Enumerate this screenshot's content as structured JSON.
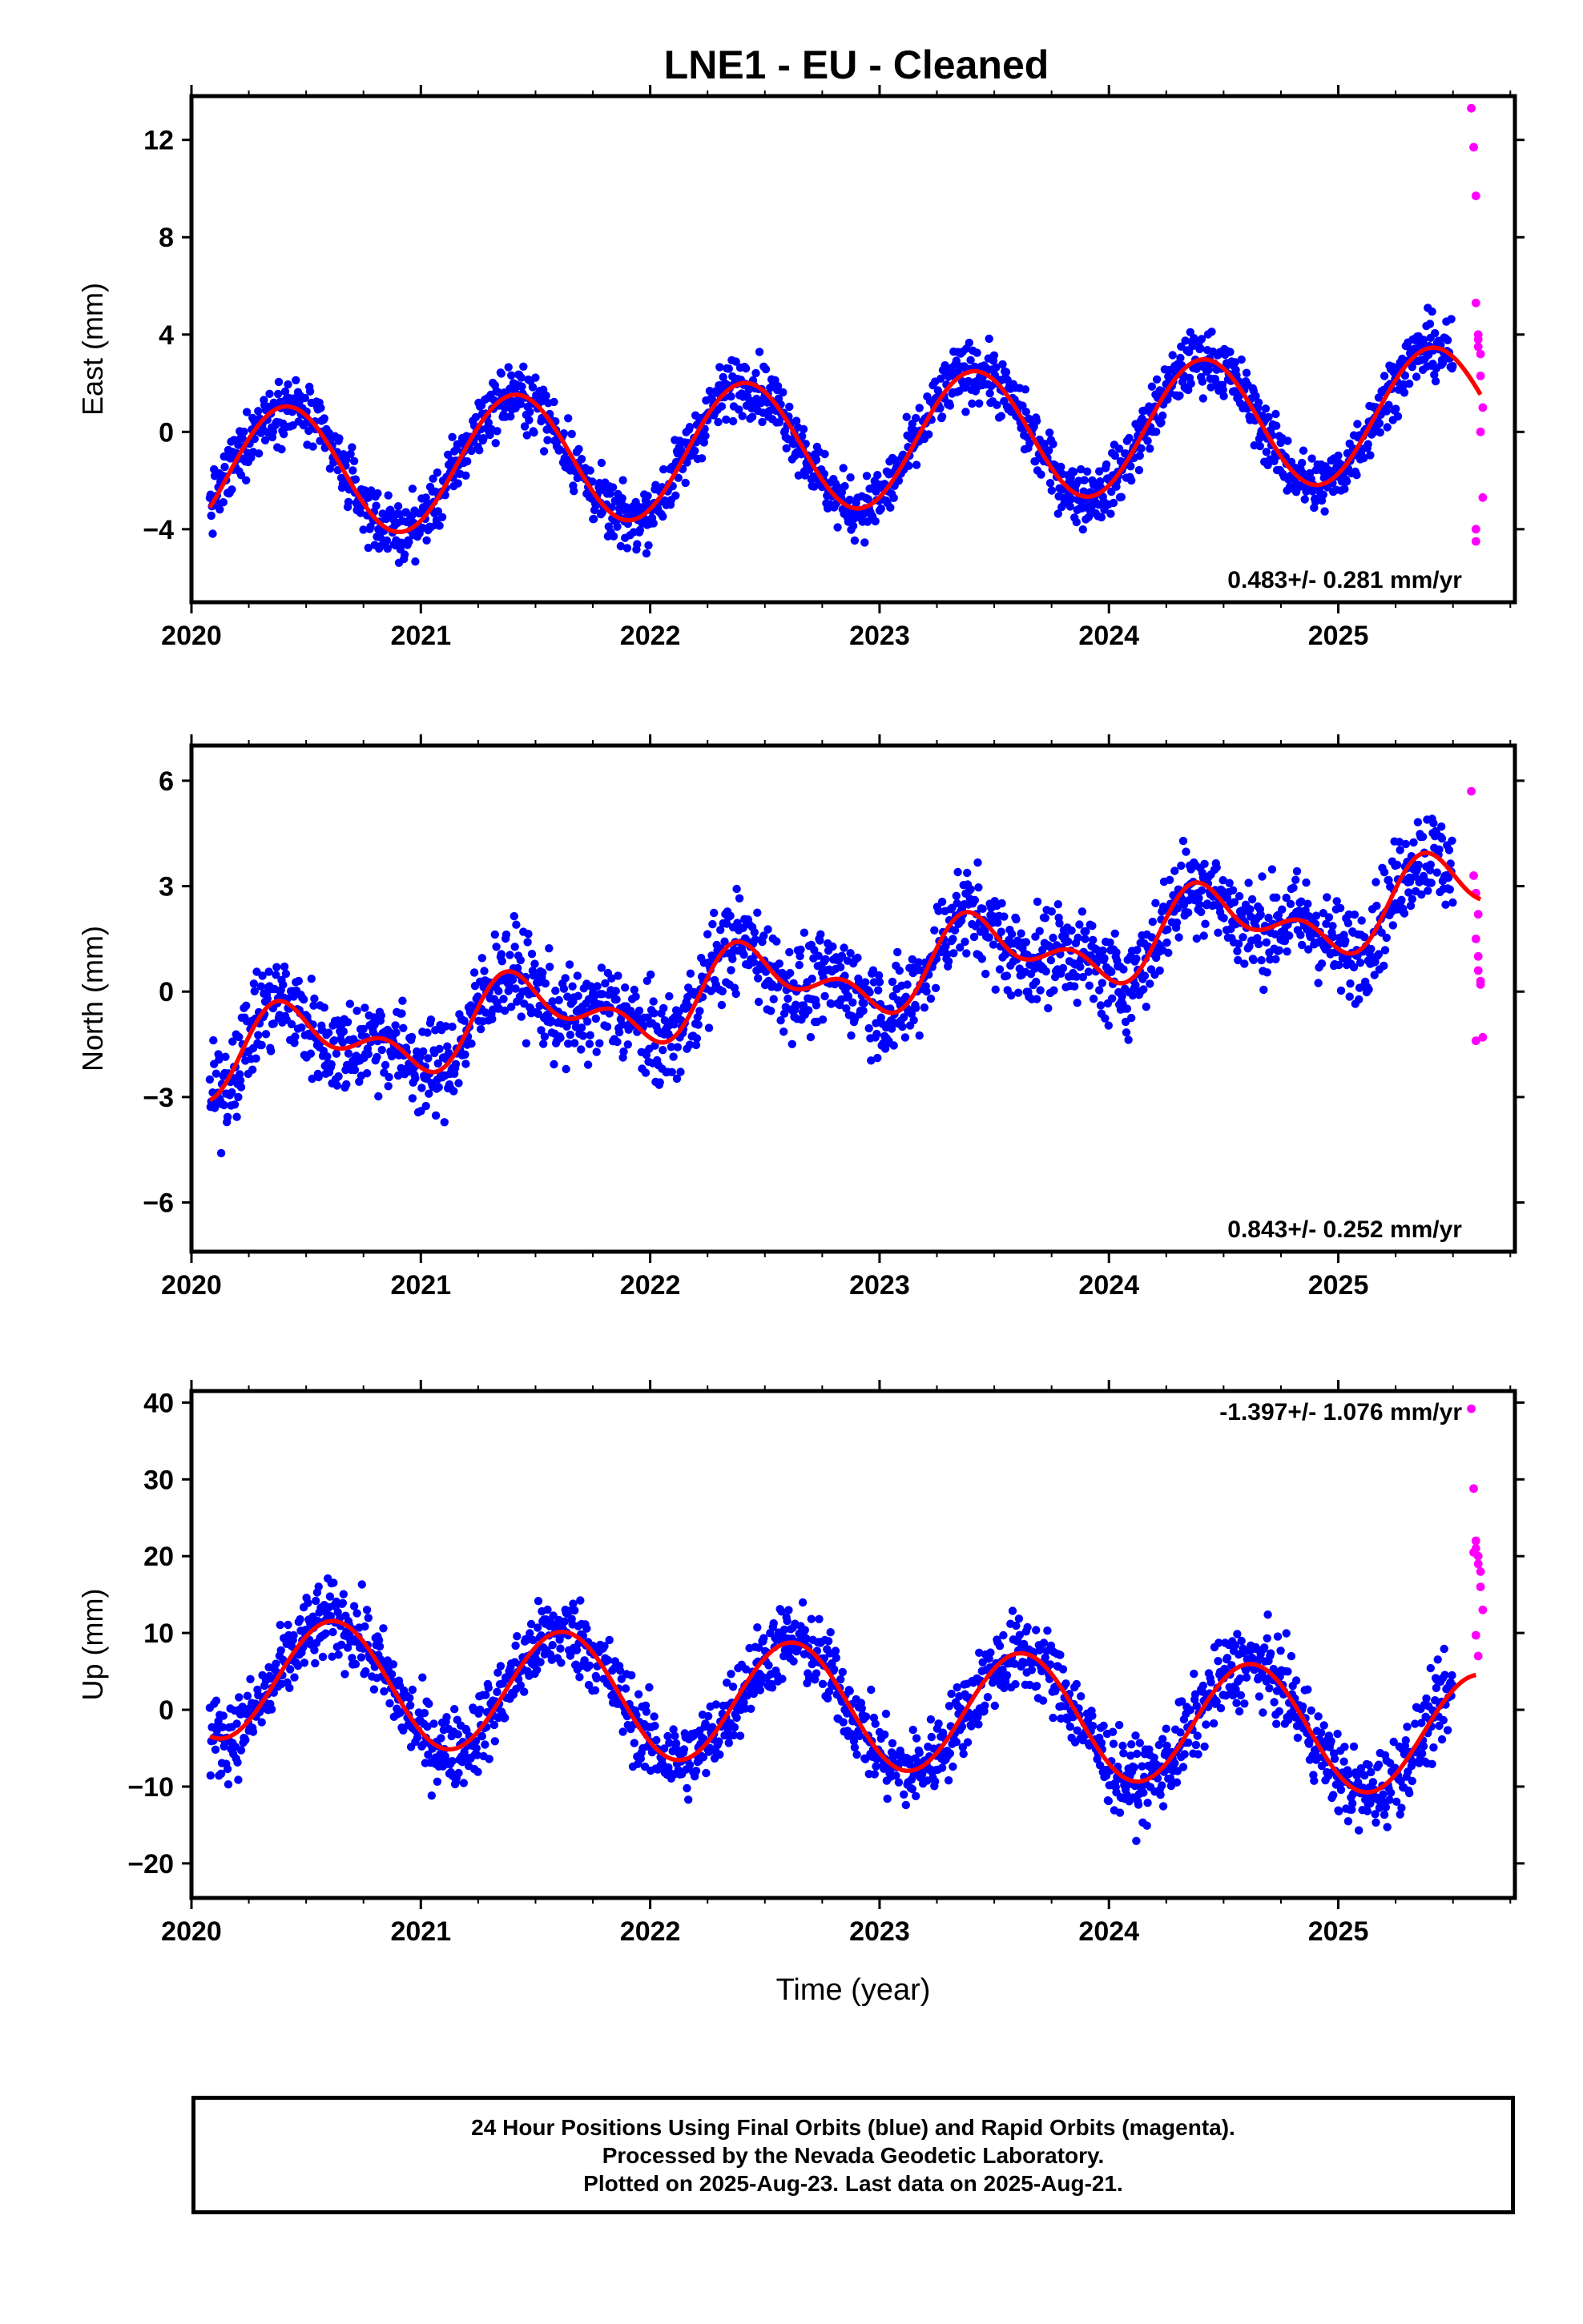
{
  "chart_data": [
    {
      "type": "scatter",
      "panel": "east",
      "title": "LNE1  - EU - Cleaned",
      "xlabel": "",
      "ylabel": "East (mm)",
      "xlim": [
        2020.0,
        2025.77
      ],
      "ylim": [
        -7,
        13.8
      ],
      "yticks": [
        -4,
        0,
        4,
        8,
        12
      ],
      "xticks": [
        "2020",
        "2021",
        "2022",
        "2023",
        "2024",
        "2025"
      ],
      "rate_label": "0.483+/- 0.281 mm/yr",
      "model": {
        "offset": -0.5,
        "rate": 0.483,
        "annual_amp": 2.7,
        "annual_peak": 0.41,
        "semi_amp": 0.0,
        "semi_peak": 0.0,
        "t0": 2022.8
      },
      "series": [
        {
          "name": "Final Orbits",
          "color": "#0000ff",
          "x_range": [
            2020.08,
            2025.5
          ],
          "noise": 1.0
        },
        {
          "name": "Rapid Orbits",
          "color": "#ff00ff",
          "x": [
            2025.58,
            2025.59,
            2025.6,
            2025.6,
            2025.61,
            2025.61,
            2025.62,
            2025.62,
            2025.63,
            2025.63,
            2025.6,
            2025.6,
            2025.62,
            2025.61
          ],
          "y": [
            13.3,
            11.7,
            9.7,
            5.3,
            4.0,
            3.5,
            3.2,
            2.3,
            1.0,
            -2.7,
            -4.0,
            -4.5,
            0.0,
            3.8
          ]
        }
      ]
    },
    {
      "type": "scatter",
      "panel": "north",
      "xlabel": "",
      "ylabel": "North (mm)",
      "xlim": [
        2020.0,
        2025.77
      ],
      "ylim": [
        -7.4,
        7.0
      ],
      "yticks": [
        -6,
        -3,
        0,
        3,
        6
      ],
      "xticks": [
        "2020",
        "2021",
        "2022",
        "2023",
        "2024",
        "2025"
      ],
      "rate_label": "0.843+/- 0.252 mm/yr",
      "model": {
        "offset": 0.4,
        "rate": 0.843,
        "annual_amp": 0.9,
        "annual_peak": 0.45,
        "semi_amp": 0.6,
        "semi_peak": 0.35,
        "t0": 2022.8
      },
      "series": [
        {
          "name": "Final Orbits",
          "color": "#0000ff",
          "x_range": [
            2020.08,
            2025.5
          ],
          "noise": 1.1
        },
        {
          "name": "Rapid Orbits",
          "color": "#ff00ff",
          "x": [
            2025.58,
            2025.59,
            2025.6,
            2025.6,
            2025.61,
            2025.61,
            2025.62,
            2025.62,
            2025.63,
            2025.6,
            2025.61
          ],
          "y": [
            5.7,
            3.3,
            2.8,
            1.5,
            1.0,
            0.6,
            0.3,
            0.2,
            -1.3,
            -1.4,
            2.2
          ]
        }
      ]
    },
    {
      "type": "scatter",
      "panel": "up",
      "xlabel": "Time (year)",
      "ylabel": "Up (mm)",
      "xlim": [
        2020.0,
        2025.77
      ],
      "ylim": [
        -24.5,
        41.5
      ],
      "yticks": [
        -20,
        -10,
        0,
        10,
        20,
        30,
        40
      ],
      "xticks": [
        "2020",
        "2021",
        "2022",
        "2023",
        "2024",
        "2025"
      ],
      "rate_label": "-1.397+/- 1.076 mm/yr",
      "model": {
        "offset": 0.5,
        "rate": -1.397,
        "annual_amp": 8.0,
        "annual_peak": 0.62,
        "semi_amp": 0.0,
        "semi_peak": 0.0,
        "t0": 2022.8
      },
      "series": [
        {
          "name": "Final Orbits",
          "color": "#0000ff",
          "x_range": [
            2020.08,
            2025.5
          ],
          "noise": 4.2
        },
        {
          "name": "Rapid Orbits",
          "color": "#ff00ff",
          "x": [
            2025.58,
            2025.59,
            2025.6,
            2025.6,
            2025.61,
            2025.61,
            2025.62,
            2025.62,
            2025.63,
            2025.6,
            2025.61,
            2025.59
          ],
          "y": [
            39.2,
            28.8,
            22.0,
            21.0,
            20.0,
            19.0,
            18.0,
            16.0,
            13.0,
            9.7,
            7.0,
            20.5
          ]
        }
      ]
    }
  ],
  "footer": {
    "line1": "24 Hour Positions Using Final Orbits (blue) and Rapid Orbits (magenta).",
    "line2": "Processed by the Nevada Geodetic Laboratory.",
    "line3": "Plotted on 2025-Aug-23. Last data on 2025-Aug-21."
  }
}
